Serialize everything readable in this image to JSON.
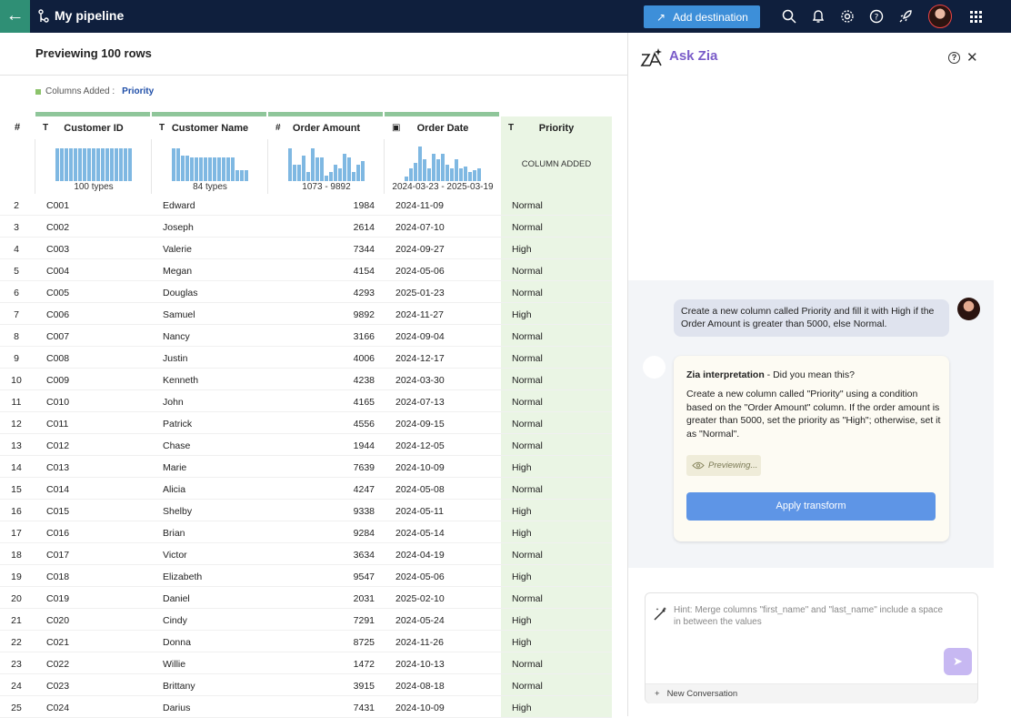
{
  "topbar": {
    "title": "My pipeline",
    "add_destination": "Add destination"
  },
  "preview": {
    "title": "Previewing 100 rows",
    "columns_added_label": "Columns Added :",
    "columns_added_value": "Priority"
  },
  "table": {
    "index_header": "#",
    "columns": [
      {
        "name": "Customer ID",
        "type_icon": "T",
        "summary": "100 types"
      },
      {
        "name": "Customer Name",
        "type_icon": "T",
        "summary": "84 types"
      },
      {
        "name": "Order Amount",
        "type_icon": "#",
        "summary": "1073 - 9892"
      },
      {
        "name": "Order Date",
        "type_icon": "calendar",
        "summary": "2024-03-23 - 2025-03-19"
      },
      {
        "name": "Priority",
        "type_icon": "T",
        "summary": "COLUMN ADDED"
      }
    ],
    "rows": [
      [
        "2",
        "C001",
        "Edward",
        "1984",
        "2024-11-09",
        "Normal"
      ],
      [
        "3",
        "C002",
        "Joseph",
        "2614",
        "2024-07-10",
        "Normal"
      ],
      [
        "4",
        "C003",
        "Valerie",
        "7344",
        "2024-09-27",
        "High"
      ],
      [
        "5",
        "C004",
        "Megan",
        "4154",
        "2024-05-06",
        "Normal"
      ],
      [
        "6",
        "C005",
        "Douglas",
        "4293",
        "2025-01-23",
        "Normal"
      ],
      [
        "7",
        "C006",
        "Samuel",
        "9892",
        "2024-11-27",
        "High"
      ],
      [
        "8",
        "C007",
        "Nancy",
        "3166",
        "2024-09-04",
        "Normal"
      ],
      [
        "9",
        "C008",
        "Justin",
        "4006",
        "2024-12-17",
        "Normal"
      ],
      [
        "10",
        "C009",
        "Kenneth",
        "4238",
        "2024-03-30",
        "Normal"
      ],
      [
        "11",
        "C010",
        "John",
        "4165",
        "2024-07-13",
        "Normal"
      ],
      [
        "12",
        "C011",
        "Patrick",
        "4556",
        "2024-09-15",
        "Normal"
      ],
      [
        "13",
        "C012",
        "Chase",
        "1944",
        "2024-12-05",
        "Normal"
      ],
      [
        "14",
        "C013",
        "Marie",
        "7639",
        "2024-10-09",
        "High"
      ],
      [
        "15",
        "C014",
        "Alicia",
        "4247",
        "2024-05-08",
        "Normal"
      ],
      [
        "16",
        "C015",
        "Shelby",
        "9338",
        "2024-05-11",
        "High"
      ],
      [
        "17",
        "C016",
        "Brian",
        "9284",
        "2024-05-14",
        "High"
      ],
      [
        "18",
        "C017",
        "Victor",
        "3634",
        "2024-04-19",
        "Normal"
      ],
      [
        "19",
        "C018",
        "Elizabeth",
        "9547",
        "2024-05-06",
        "High"
      ],
      [
        "20",
        "C019",
        "Daniel",
        "2031",
        "2025-02-10",
        "Normal"
      ],
      [
        "21",
        "C020",
        "Cindy",
        "7291",
        "2024-05-24",
        "High"
      ],
      [
        "22",
        "C021",
        "Donna",
        "8725",
        "2024-11-26",
        "High"
      ],
      [
        "23",
        "C022",
        "Willie",
        "1472",
        "2024-10-13",
        "Normal"
      ],
      [
        "24",
        "C023",
        "Brittany",
        "3915",
        "2024-08-18",
        "Normal"
      ],
      [
        "25",
        "C024",
        "Darius",
        "7431",
        "2024-10-09",
        "High"
      ]
    ]
  },
  "zia": {
    "title": "Ask Zia",
    "user_message": "Create a new column called Priority and fill it with High if the Order Amount is greater than 5000, else Normal.",
    "interpretation_title": "Zia interpretation",
    "interpretation_suffix": " - Did you mean this?",
    "interpretation_body": "Create a new column called \"Priority\" using a condition based on the \"Order Amount\" column. If the order amount is greater than 5000, set the priority as \"High\"; otherwise, set it as \"Normal\".",
    "previewing": "Previewing...",
    "apply_button": "Apply transform",
    "input_placeholder": "Hint: Merge columns \"first_name\" and \"last_name\" include a space in between the values",
    "new_conversation": "New Conversation"
  },
  "colors": {
    "topbar_bg": "#0f1f3d",
    "back_button": "#2f8f75",
    "accent_button": "#3d8fd9",
    "zia_title": "#7a5cc9",
    "apply_button": "#5e95e6",
    "priority_column_bg": "#eaf5e4",
    "header_green": "#8fc69a",
    "histogram_bar": "#7fb8e2"
  }
}
